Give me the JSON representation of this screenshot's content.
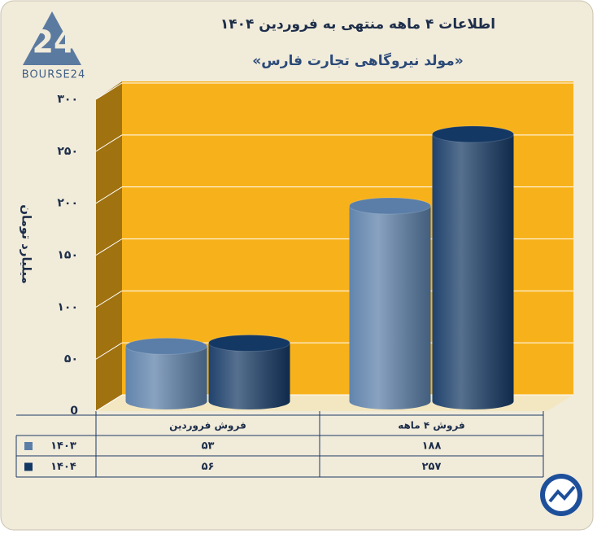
{
  "logo": {
    "mark": "24",
    "text": "BOURSE24"
  },
  "chart_data": {
    "type": "bar",
    "title": "اطلاعات ۴ ماهه منتهی به فروردین ۱۴۰۴",
    "subtitle": "«مولد نیروگاهی تجارت فارس»",
    "ylabel": "میلیارد تومان",
    "categories": [
      "فروش فروردین",
      "فروش ۴ ماهه"
    ],
    "series": [
      {
        "name": "۱۴۰۳",
        "color": "#5a7ea8",
        "values": [
          53,
          188
        ],
        "value_labels": [
          "۵۳",
          "۱۸۸"
        ]
      },
      {
        "name": "۱۴۰۴",
        "color": "#143864",
        "values": [
          56,
          257
        ],
        "value_labels": [
          "۵۶",
          "۲۵۷"
        ]
      }
    ],
    "ylim": [
      0,
      300
    ],
    "yticks": [
      0,
      {
        "value": 50,
        "label": "۵۰"
      },
      {
        "value": 100,
        "label": "۱۰۰"
      },
      {
        "value": 150,
        "label": "۱۵۰"
      },
      {
        "value": 200,
        "label": "۲۰۰"
      },
      {
        "value": 250,
        "label": "۲۵۰"
      },
      {
        "value": 300,
        "label": "۳۰۰"
      }
    ],
    "grid": true
  }
}
